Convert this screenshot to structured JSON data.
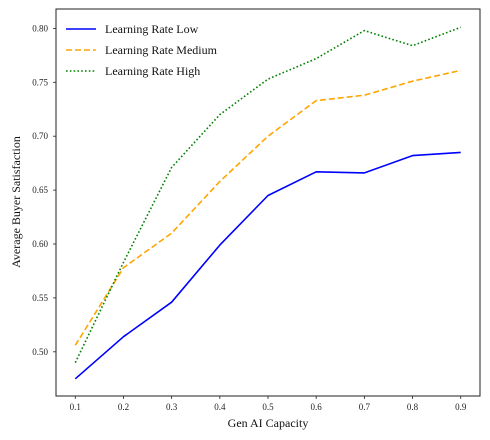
{
  "chart_data": {
    "type": "line",
    "title": "",
    "xlabel": "Gen AI Capacity",
    "ylabel": "Average Buyer Satisfaction",
    "x": [
      0.1,
      0.2,
      0.3,
      0.4,
      0.5,
      0.6,
      0.7,
      0.8,
      0.9
    ],
    "x_tick_labels": [
      "0.1",
      "0.2",
      "0.3",
      "0.4",
      "0.5",
      "0.6",
      "0.7",
      "0.8",
      "0.9"
    ],
    "y_tick_values": [
      0.5,
      0.55,
      0.6,
      0.65,
      0.7,
      0.75,
      0.8
    ],
    "y_tick_labels": [
      "0.50",
      "0.55",
      "0.60",
      "0.65",
      "0.70",
      "0.75",
      "0.80"
    ],
    "xlim": [
      0.06,
      0.94
    ],
    "ylim": [
      0.459,
      0.818
    ],
    "grid": false,
    "legend_position": "upper-left",
    "series": [
      {
        "name": "Learning Rate Low",
        "color": "#0000ff",
        "style": "solid",
        "values": [
          0.475,
          0.514,
          0.546,
          0.599,
          0.645,
          0.667,
          0.666,
          0.682,
          0.685
        ]
      },
      {
        "name": "Learning Rate Medium",
        "color": "#ffa500",
        "style": "dashed",
        "values": [
          0.506,
          0.578,
          0.61,
          0.658,
          0.7,
          0.733,
          0.738,
          0.751,
          0.761
        ]
      },
      {
        "name": "Learning Rate High",
        "color": "#008000",
        "style": "dotted",
        "values": [
          0.49,
          0.583,
          0.671,
          0.72,
          0.753,
          0.772,
          0.798,
          0.784,
          0.801
        ]
      }
    ]
  }
}
